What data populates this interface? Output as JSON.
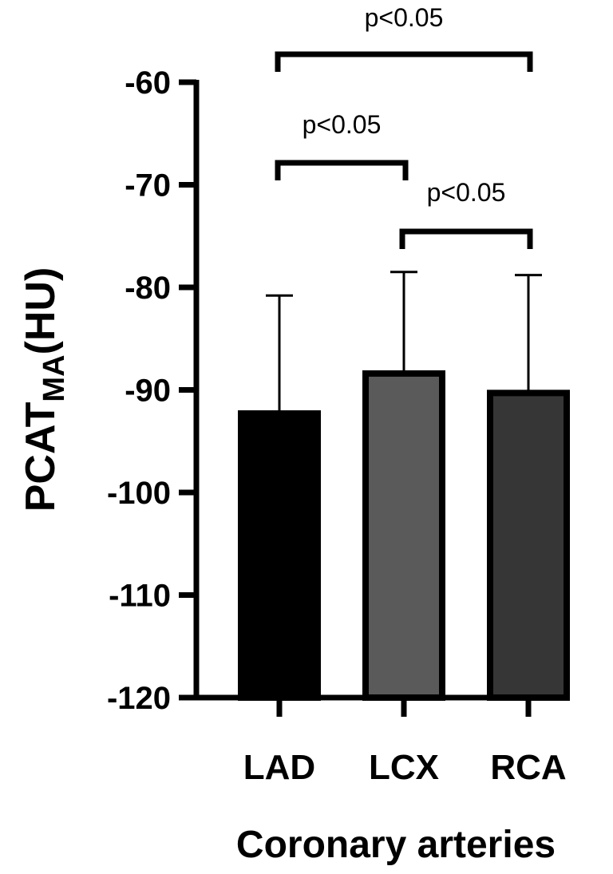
{
  "chart_data": {
    "type": "bar",
    "categories": [
      "LAD",
      "LCX",
      "RCA"
    ],
    "values": [
      -92.3,
      -88.4,
      -90.3
    ],
    "error_upper": [
      -80.8,
      -78.5,
      -78.8
    ],
    "bar_colors": [
      "#000000",
      "#5a5a5a",
      "#363636"
    ],
    "xlabel": "Coronary arteries",
    "ylabel": {
      "main": "PCAT",
      "subscript": "MA",
      "suffix": "(HU)"
    },
    "ylim": [
      -120,
      -60
    ],
    "yticks": [
      "-60",
      "-70",
      "-80",
      "-90",
      "-100",
      "-110",
      "-120"
    ],
    "bar_baseline": -120,
    "grid": false,
    "significance": [
      {
        "from": "LAD",
        "to": "RCA",
        "label": "p<0.05"
      },
      {
        "from": "LAD",
        "to": "LCX",
        "label": "p<0.05"
      },
      {
        "from": "LCX",
        "to": "RCA",
        "label": "p<0.05"
      }
    ]
  }
}
